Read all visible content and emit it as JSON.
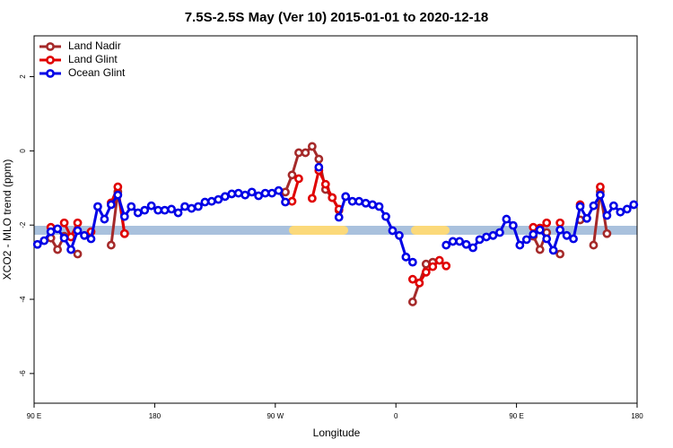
{
  "chart_data": {
    "type": "line",
    "title": "7.5S-2.5S May (Ver 10)   2015-01-01 to 2020-12-18",
    "x_label": "Longitude",
    "y_label": "XCO2 - MLO trend (ppm)",
    "xlim": [
      90,
      540
    ],
    "xticks": [
      {
        "value": 90,
        "label": "90 E"
      },
      {
        "value": 180,
        "label": "180"
      },
      {
        "value": 270,
        "label": "90 W"
      },
      {
        "value": 360,
        "label": "0"
      },
      {
        "value": 450,
        "label": "90 E"
      },
      {
        "value": 540,
        "label": "180"
      }
    ],
    "ylim": [
      -6.8,
      3.1
    ],
    "yticks": [
      -6,
      -4,
      -2,
      0,
      2
    ],
    "legend": "topleft",
    "x": [
      92.5,
      97.5,
      102.5,
      107.5,
      112.5,
      117.5,
      122.5,
      127.5,
      132.5,
      137.5,
      142.5,
      147.5,
      152.5,
      157.5,
      162.5,
      167.5,
      172.5,
      177.5,
      182.5,
      187.5,
      192.5,
      197.5,
      202.5,
      207.5,
      212.5,
      217.5,
      222.5,
      227.5,
      232.5,
      237.5,
      242.5,
      247.5,
      252.5,
      257.5,
      262.5,
      267.5,
      272.5,
      277.5,
      282.5,
      287.5,
      292.5,
      297.5,
      302.5,
      307.5,
      312.5,
      317.5,
      322.5,
      327.5,
      332.5,
      337.5,
      342.5,
      347.5,
      352.5,
      357.5,
      362.5,
      367.5,
      372.5,
      377.5,
      382.5,
      387.5,
      392.5,
      397.5,
      402.5,
      407.5,
      412.5,
      417.5,
      422.5,
      427.5,
      432.5,
      437.5,
      442.5,
      447.5,
      452.5,
      457.5,
      462.5,
      467.5,
      472.5,
      477.5,
      482.5,
      487.5,
      492.5,
      497.5,
      502.5,
      507.5,
      512.5,
      517.5,
      522.5,
      527.5,
      532.5,
      537.5
    ],
    "series": [
      {
        "name": "Land Nadir",
        "color": "#a52a2a",
        "values": [
          null,
          null,
          -2.35,
          -2.66,
          -2.3,
          null,
          -2.78,
          null,
          null,
          null,
          null,
          -2.54,
          -1.1,
          -2.23,
          null,
          null,
          null,
          null,
          null,
          null,
          null,
          null,
          null,
          null,
          null,
          null,
          null,
          null,
          null,
          null,
          null,
          null,
          null,
          null,
          null,
          null,
          null,
          -1.11,
          -0.65,
          -0.05,
          -0.05,
          0.12,
          -0.22,
          -1.04,
          -1.26,
          -1.6,
          null,
          null,
          null,
          null,
          null,
          null,
          null,
          null,
          null,
          null,
          -4.07,
          -3.56,
          -3.05,
          -3.0,
          null,
          null,
          null,
          null,
          null,
          null,
          null,
          null,
          null,
          null,
          null,
          null,
          null,
          null,
          -2.3,
          -2.66,
          -2.2,
          null,
          -2.78,
          null,
          null,
          -1.86,
          null,
          -2.54,
          -1.1,
          -2.23,
          null,
          null,
          null,
          null
        ]
      },
      {
        "name": "Land Glint",
        "color": "#e00000",
        "values": [
          null,
          null,
          -2.06,
          null,
          -1.94,
          -2.32,
          -1.94,
          null,
          -2.18,
          null,
          null,
          -1.4,
          -0.97,
          -2.23,
          null,
          null,
          null,
          null,
          null,
          null,
          null,
          null,
          null,
          null,
          null,
          null,
          null,
          null,
          null,
          null,
          null,
          null,
          null,
          null,
          null,
          null,
          null,
          null,
          -1.36,
          -0.75,
          null,
          -1.28,
          -0.53,
          -0.9,
          -1.26,
          -1.57,
          null,
          null,
          null,
          null,
          null,
          null,
          null,
          null,
          null,
          null,
          -3.46,
          -3.56,
          -3.27,
          -3.12,
          -2.95,
          -3.1,
          null,
          null,
          null,
          null,
          null,
          null,
          null,
          null,
          null,
          null,
          null,
          null,
          -2.06,
          -2.08,
          -1.94,
          null,
          -1.94,
          null,
          null,
          -1.45,
          null,
          null,
          -0.97,
          null,
          null,
          null,
          null,
          null
        ]
      },
      {
        "name": "Ocean Glint",
        "color": "#0000e6",
        "values": [
          -2.52,
          -2.42,
          -2.18,
          -2.1,
          -2.35,
          -2.66,
          -2.15,
          -2.28,
          -2.37,
          -1.5,
          -1.84,
          -1.45,
          -1.19,
          -1.77,
          -1.5,
          -1.67,
          -1.6,
          -1.48,
          -1.6,
          -1.6,
          -1.57,
          -1.67,
          -1.5,
          -1.55,
          -1.5,
          -1.38,
          -1.36,
          -1.31,
          -1.23,
          -1.16,
          -1.14,
          -1.19,
          -1.11,
          -1.21,
          -1.14,
          -1.14,
          -1.07,
          -1.38,
          null,
          null,
          null,
          null,
          -0.44,
          null,
          null,
          -1.79,
          -1.23,
          -1.36,
          -1.36,
          -1.41,
          -1.45,
          -1.5,
          -1.77,
          -2.15,
          -2.28,
          -2.86,
          -3.0,
          null,
          null,
          null,
          null,
          -2.54,
          -2.44,
          -2.44,
          -2.52,
          -2.61,
          -2.39,
          -2.32,
          -2.28,
          -2.2,
          -1.84,
          -2.01,
          -2.54,
          -2.39,
          -2.25,
          -2.13,
          -2.37,
          -2.68,
          -2.13,
          -2.28,
          -2.37,
          -1.5,
          -1.82,
          -1.48,
          -1.19,
          -1.74,
          -1.48,
          -1.65,
          -1.57,
          -1.45
        ]
      }
    ]
  }
}
